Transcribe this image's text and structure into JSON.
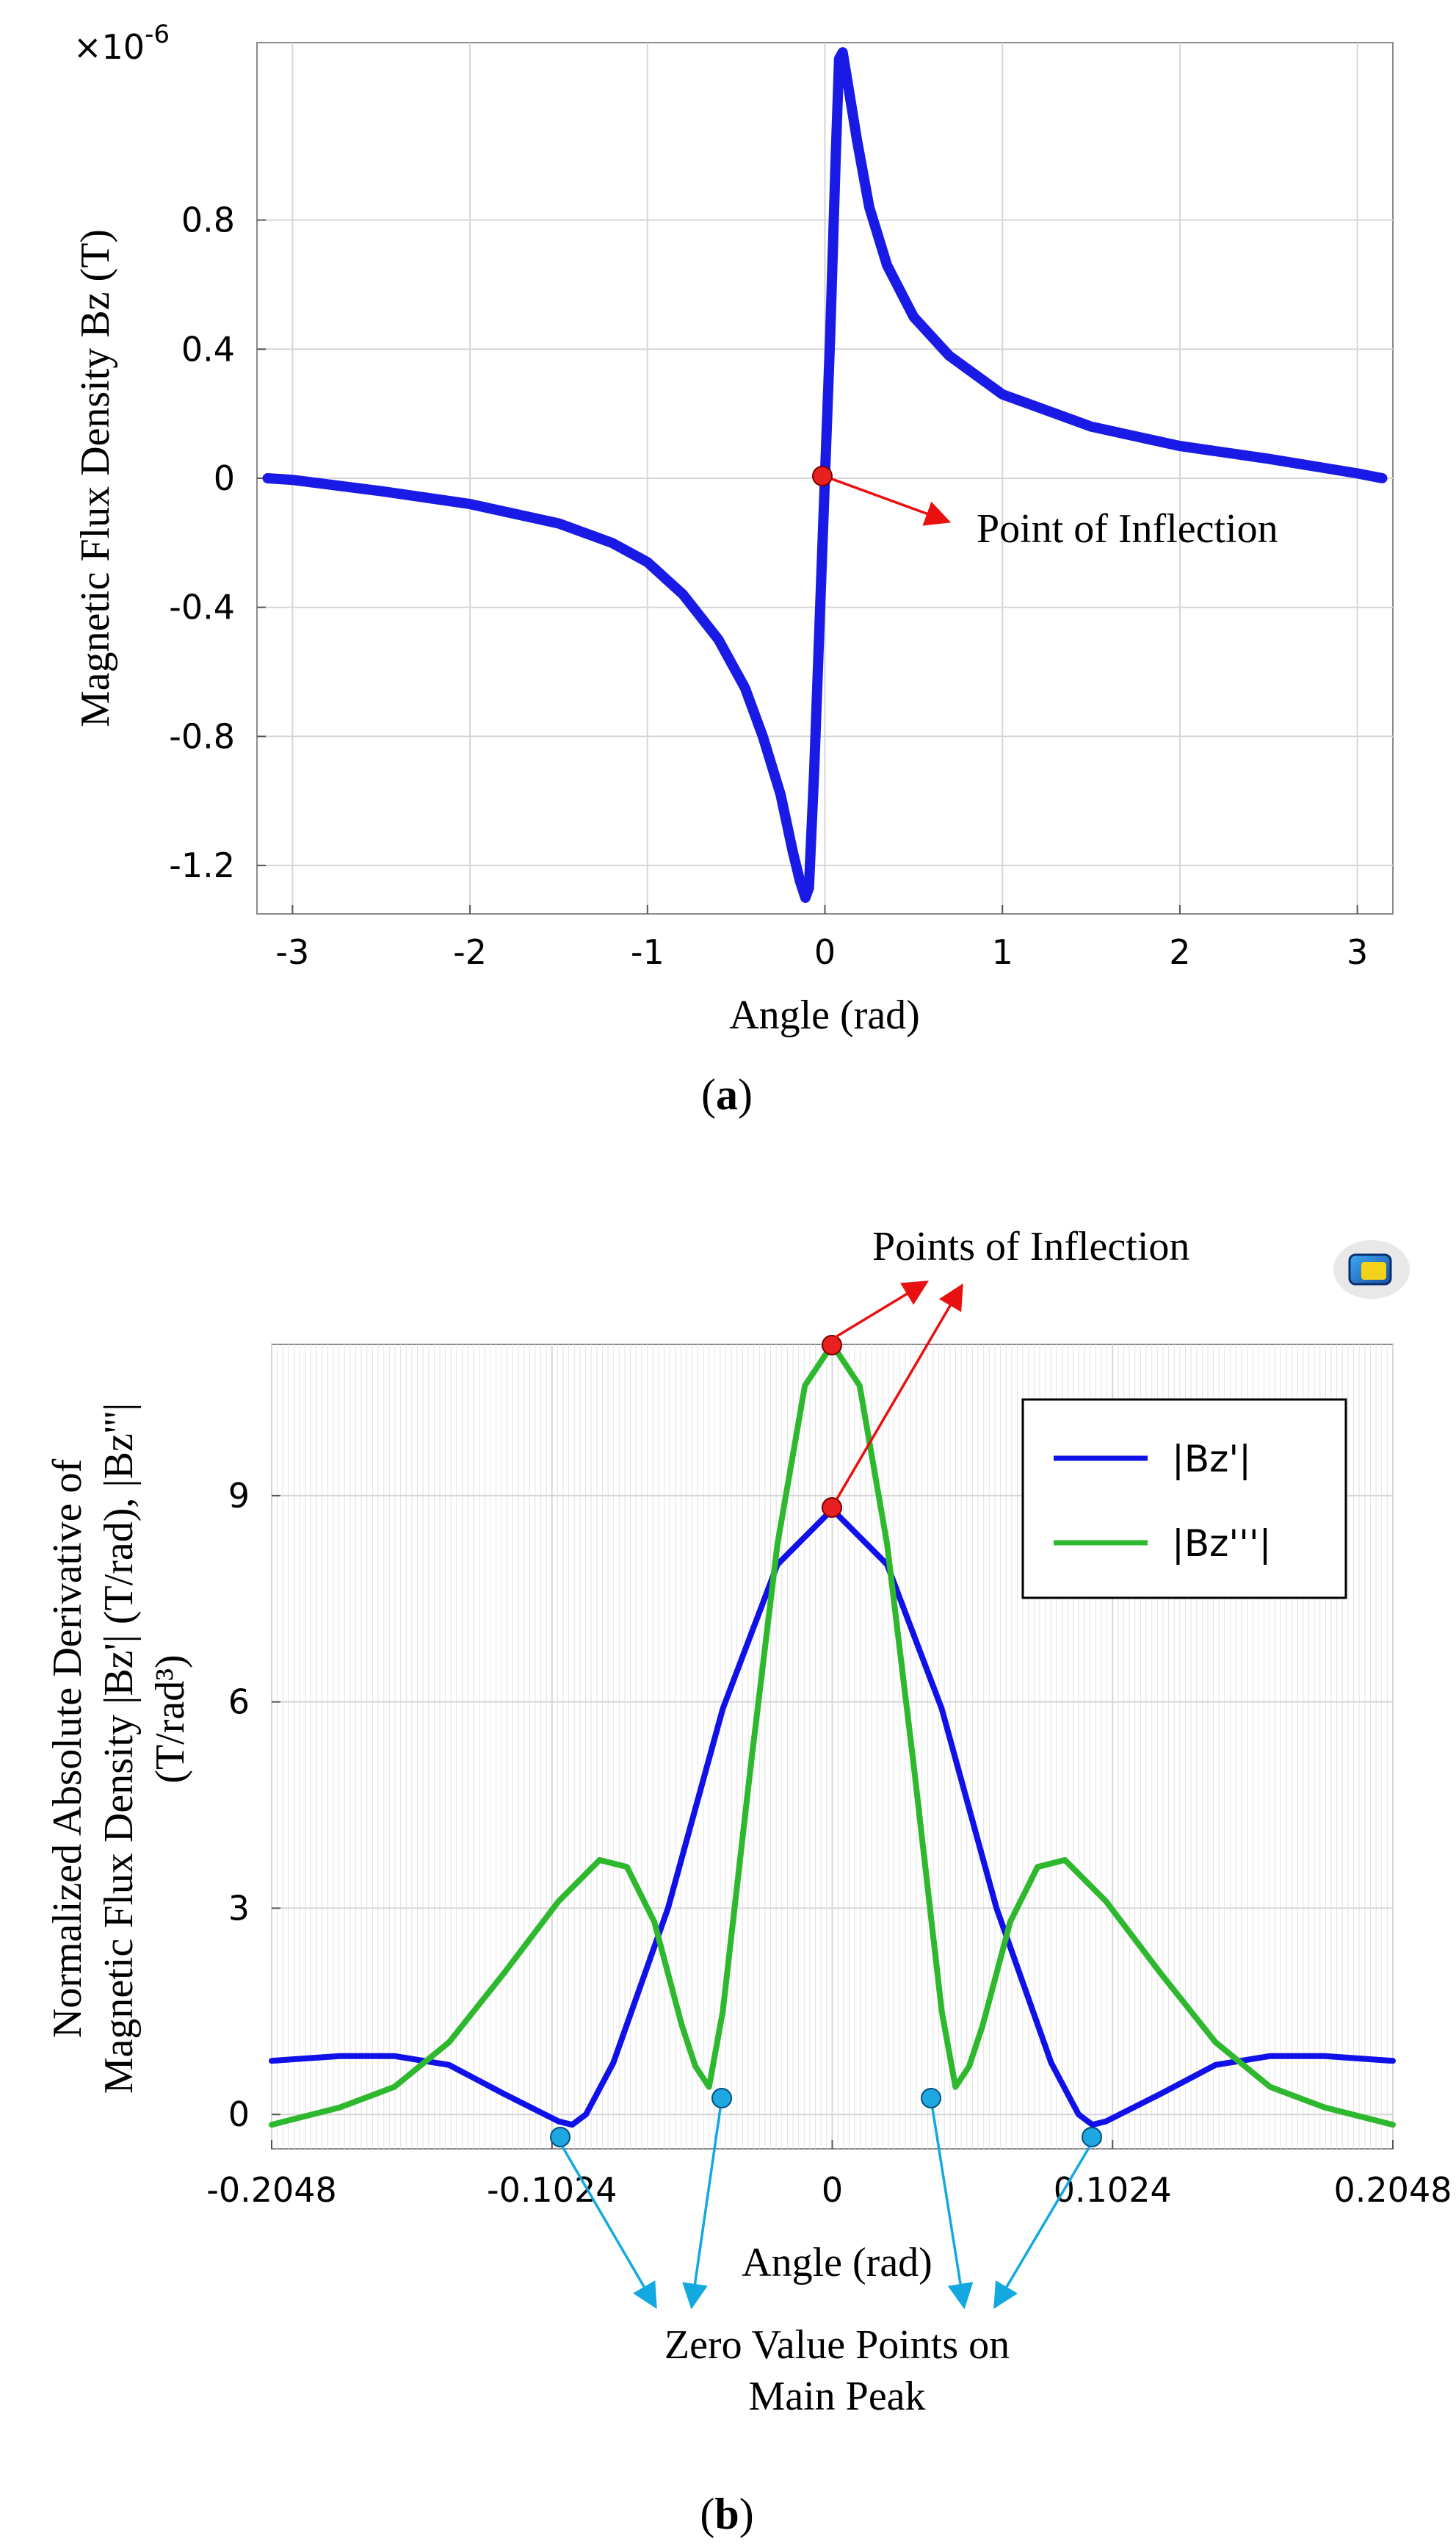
{
  "chart_data": [
    {
      "type": "line",
      "panel_label": "a",
      "title": "",
      "xlabel": "Angle (rad)",
      "ylabel": "Magnetic Flux Density Bz (T)",
      "scale_label": "×10",
      "scale_exponent": "-6",
      "xlim": [
        -3.2,
        3.2
      ],
      "ylim": [
        -1.35,
        1.35
      ],
      "xticks": [
        -3,
        -2,
        -1,
        0,
        1,
        2,
        3
      ],
      "xtick_labels": [
        "-3",
        "-2",
        "-1",
        "0",
        "1",
        "2",
        "3"
      ],
      "yticks": [
        -1.2,
        -0.8,
        -0.4,
        0,
        0.4,
        0.8
      ],
      "ytick_labels": [
        "-1.2",
        "-0.8",
        "-0.4",
        "0",
        "0.4",
        "0.8"
      ],
      "grid": true,
      "series": [
        {
          "name": "Bz",
          "color": "#1a1ae6",
          "x": [
            -3.14,
            -3.0,
            -2.5,
            -2.0,
            -1.5,
            -1.2,
            -1.0,
            -0.8,
            -0.6,
            -0.45,
            -0.35,
            -0.25,
            -0.18,
            -0.14,
            -0.11,
            -0.09,
            -0.06,
            -0.03,
            0,
            0.03,
            0.06,
            0.08,
            0.1,
            0.13,
            0.18,
            0.25,
            0.35,
            0.5,
            0.7,
            1.0,
            1.5,
            2.0,
            2.5,
            3.0,
            3.14
          ],
          "y": [
            0.0,
            -0.005,
            -0.04,
            -0.08,
            -0.14,
            -0.2,
            -0.26,
            -0.36,
            -0.5,
            -0.65,
            -0.8,
            -0.98,
            -1.16,
            -1.25,
            -1.3,
            -1.27,
            -0.9,
            -0.45,
            0.0,
            0.45,
            0.98,
            1.3,
            1.32,
            1.22,
            1.05,
            0.84,
            0.66,
            0.5,
            0.38,
            0.26,
            0.16,
            0.1,
            0.06,
            0.015,
            0.0
          ]
        }
      ],
      "annotations": [
        {
          "text": "Point of Inflection",
          "x": 0,
          "y": 0
        }
      ]
    },
    {
      "type": "line",
      "panel_label": "b",
      "title": "",
      "xlabel": "Angle (rad)",
      "ylabel_lines": [
        "Normalized Absolute Derivative of",
        "Magnetic Flux Density |Bz'| (T/rad), |Bz'''|",
        "(T/rad³)"
      ],
      "xlim": [
        -0.2048,
        0.2048
      ],
      "ylim": [
        -0.5,
        11.2
      ],
      "xticks": [
        -0.2048,
        -0.1024,
        0,
        0.1024,
        0.2048
      ],
      "xtick_labels": [
        "-0.2048",
        "-0.1024",
        "0",
        "0.1024",
        "0.2048"
      ],
      "yticks": [
        0,
        3,
        6,
        9
      ],
      "ytick_labels": [
        "0",
        "3",
        "6",
        "9"
      ],
      "grid": true,
      "legend_position": "top-right",
      "series": [
        {
          "name": "|Bz'|",
          "color": "#1010e8",
          "x": [
            -0.2048,
            -0.18,
            -0.16,
            -0.14,
            -0.12,
            -0.1,
            -0.095,
            -0.09,
            -0.08,
            -0.06,
            -0.04,
            -0.02,
            0,
            0.02,
            0.04,
            0.06,
            0.08,
            0.09,
            0.095,
            0.1,
            0.12,
            0.14,
            0.16,
            0.18,
            0.2048
          ],
          "y": [
            0.78,
            0.85,
            0.85,
            0.72,
            0.3,
            -0.1,
            -0.15,
            0.0,
            0.75,
            3.0,
            5.9,
            8.0,
            8.8,
            8.0,
            5.9,
            3.0,
            0.75,
            0.0,
            -0.15,
            -0.1,
            0.3,
            0.72,
            0.85,
            0.85,
            0.78
          ]
        },
        {
          "name": "|Bz'''|",
          "color": "#2eb82e",
          "x": [
            -0.2048,
            -0.18,
            -0.16,
            -0.14,
            -0.12,
            -0.1,
            -0.085,
            -0.075,
            -0.065,
            -0.055,
            -0.05,
            -0.045,
            -0.04,
            -0.03,
            -0.02,
            -0.01,
            0,
            0.01,
            0.02,
            0.03,
            0.04,
            0.045,
            0.05,
            0.055,
            0.065,
            0.075,
            0.085,
            0.1,
            0.12,
            0.14,
            0.16,
            0.18,
            0.2048
          ],
          "y": [
            -0.15,
            0.1,
            0.4,
            1.05,
            2.05,
            3.1,
            3.7,
            3.6,
            2.8,
            1.3,
            0.7,
            0.4,
            1.5,
            5.0,
            8.3,
            10.6,
            11.2,
            10.6,
            8.3,
            5.0,
            1.5,
            0.4,
            0.7,
            1.3,
            2.8,
            3.6,
            3.7,
            3.1,
            2.05,
            1.05,
            0.4,
            0.1,
            -0.15
          ]
        }
      ],
      "annotations": [
        {
          "text": "Points of Inflection"
        },
        {
          "text_lines": [
            "Zero Value Points on",
            "Main Peak"
          ]
        }
      ]
    }
  ]
}
